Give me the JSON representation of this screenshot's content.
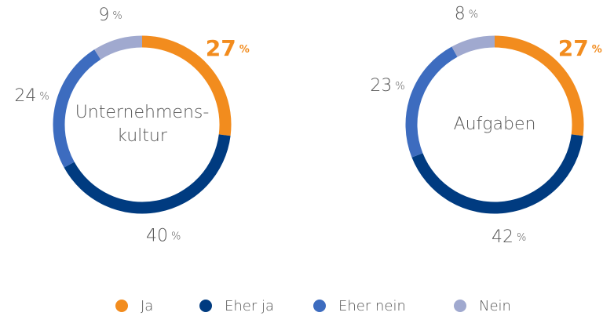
{
  "chart_data": [
    {
      "type": "pie",
      "title": [
        "Unternehmens-",
        "kultur"
      ],
      "values": [
        27,
        40,
        24,
        9
      ],
      "unit": "%"
    },
    {
      "type": "pie",
      "title": [
        "Aufgaben"
      ],
      "values": [
        27,
        42,
        23,
        8
      ],
      "unit": "%"
    }
  ],
  "legend": {
    "labels": [
      "Ja",
      "Eher ja",
      "Eher nein",
      "Nein"
    ],
    "colors": [
      "#f28c1e",
      "#003b80",
      "#3d6cbf",
      "#a0a9cf"
    ]
  }
}
